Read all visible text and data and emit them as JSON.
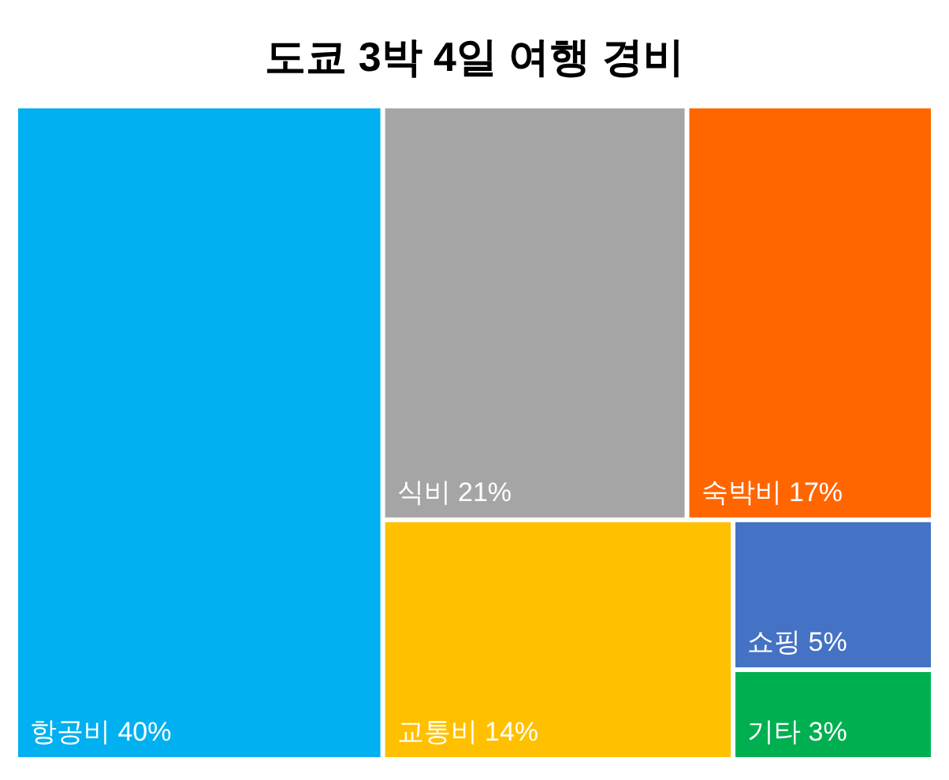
{
  "chart_data": {
    "type": "other",
    "title": "도쿄 3박 4일 여행 경비",
    "categories": [
      "항공비",
      "식비",
      "숙박비",
      "교통비",
      "쇼핑",
      "기타"
    ],
    "values": [
      40,
      21,
      17,
      14,
      5,
      3
    ],
    "value_labels": [
      "40%",
      "21%",
      "17%",
      "14%",
      "5%",
      "3%"
    ],
    "colors": [
      "#00b0f0",
      "#a5a5a5",
      "#ff6600",
      "#ffc000",
      "#4472c4",
      "#00b050"
    ]
  }
}
